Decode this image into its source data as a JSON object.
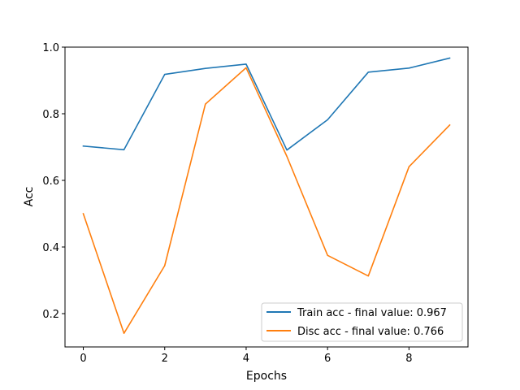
{
  "chart_data": {
    "type": "line",
    "title": "",
    "xlabel": "Epochs",
    "ylabel": "Acc",
    "x": [
      0,
      1,
      2,
      3,
      4,
      5,
      6,
      7,
      8,
      9
    ],
    "xlim": [
      -0.45,
      9.45
    ],
    "ylim": [
      0.1,
      1.0
    ],
    "xticks": [
      0,
      2,
      4,
      6,
      8
    ],
    "yticks": [
      0.2,
      0.4,
      0.6,
      0.8,
      1.0
    ],
    "xtick_labels": [
      "0",
      "2",
      "4",
      "6",
      "8"
    ],
    "ytick_labels": [
      "0.2",
      "0.4",
      "0.6",
      "0.8",
      "1.0"
    ],
    "grid": false,
    "legend_position": "lower-right",
    "series": [
      {
        "name": "Train acc - final value: 0.967",
        "color": "#1f77b4",
        "values": [
          0.703,
          0.692,
          0.918,
          0.936,
          0.949,
          0.691,
          0.782,
          0.925,
          0.937,
          0.967
        ]
      },
      {
        "name": "Disc acc - final value: 0.766",
        "color": "#ff7f0e",
        "values": [
          0.5,
          0.141,
          0.344,
          0.829,
          0.938,
          0.672,
          0.375,
          0.313,
          0.641,
          0.766
        ]
      }
    ]
  }
}
